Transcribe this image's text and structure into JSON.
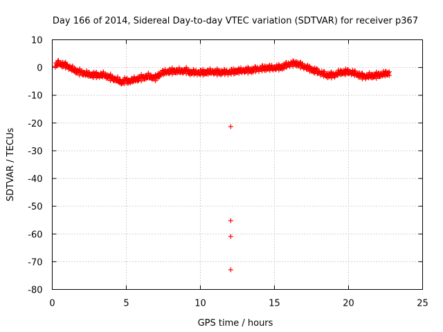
{
  "chart_data": {
    "type": "scatter",
    "title": "Day 166 of 2014, Sidereal Day-to-day VTEC variation (SDTVAR) for receiver p367",
    "xlabel": "GPS time / hours",
    "ylabel": "SDTVAR / TECUs",
    "xlim": [
      0,
      25
    ],
    "ylim": [
      -80,
      10
    ],
    "xticks": [
      0,
      5,
      10,
      15,
      20,
      25
    ],
    "yticks": [
      10,
      0,
      -10,
      -20,
      -30,
      -40,
      -50,
      -60,
      -70,
      -80
    ],
    "grid": true,
    "marker": "+",
    "color": "#ff0000",
    "series": [
      {
        "name": "SDTVAR",
        "trend": [
          [
            0.2,
            0.5
          ],
          [
            0.4,
            1.8
          ],
          [
            0.7,
            1.2
          ],
          [
            1.0,
            0.8
          ],
          [
            1.3,
            -0.3
          ],
          [
            1.7,
            -1.3
          ],
          [
            2.1,
            -1.9
          ],
          [
            2.5,
            -2.4
          ],
          [
            3.0,
            -2.6
          ],
          [
            3.5,
            -2.6
          ],
          [
            4.0,
            -3.6
          ],
          [
            4.4,
            -4.4
          ],
          [
            4.7,
            -5.2
          ],
          [
            4.9,
            -4.6
          ],
          [
            5.2,
            -4.8
          ],
          [
            5.6,
            -4.2
          ],
          [
            6.0,
            -3.6
          ],
          [
            6.5,
            -3.1
          ],
          [
            7.0,
            -3.6
          ],
          [
            7.3,
            -2.1
          ],
          [
            7.7,
            -1.4
          ],
          [
            8.2,
            -1.1
          ],
          [
            8.7,
            -1.2
          ],
          [
            9.0,
            -0.9
          ],
          [
            9.3,
            -1.6
          ],
          [
            9.8,
            -1.7
          ],
          [
            10.3,
            -1.6
          ],
          [
            10.8,
            -1.4
          ],
          [
            11.3,
            -1.6
          ],
          [
            11.8,
            -1.6
          ],
          [
            12.4,
            -1.2
          ],
          [
            13.0,
            -0.9
          ],
          [
            13.5,
            -0.8
          ],
          [
            14.0,
            -0.3
          ],
          [
            14.5,
            0.0
          ],
          [
            15.0,
            0.0
          ],
          [
            15.5,
            0.3
          ],
          [
            16.0,
            1.4
          ],
          [
            16.5,
            1.6
          ],
          [
            17.0,
            0.5
          ],
          [
            17.5,
            -0.6
          ],
          [
            18.0,
            -1.5
          ],
          [
            18.5,
            -2.6
          ],
          [
            19.0,
            -2.6
          ],
          [
            19.5,
            -1.6
          ],
          [
            20.0,
            -1.4
          ],
          [
            20.5,
            -2.1
          ],
          [
            21.0,
            -3.1
          ],
          [
            21.5,
            -2.9
          ],
          [
            22.0,
            -2.6
          ],
          [
            22.5,
            -2.1
          ],
          [
            22.75,
            -1.9
          ]
        ],
        "outliers": [
          [
            12.05,
            -21.3
          ],
          [
            12.05,
            -55.2
          ],
          [
            12.05,
            -60.9
          ],
          [
            12.05,
            -72.9
          ]
        ]
      }
    ]
  }
}
